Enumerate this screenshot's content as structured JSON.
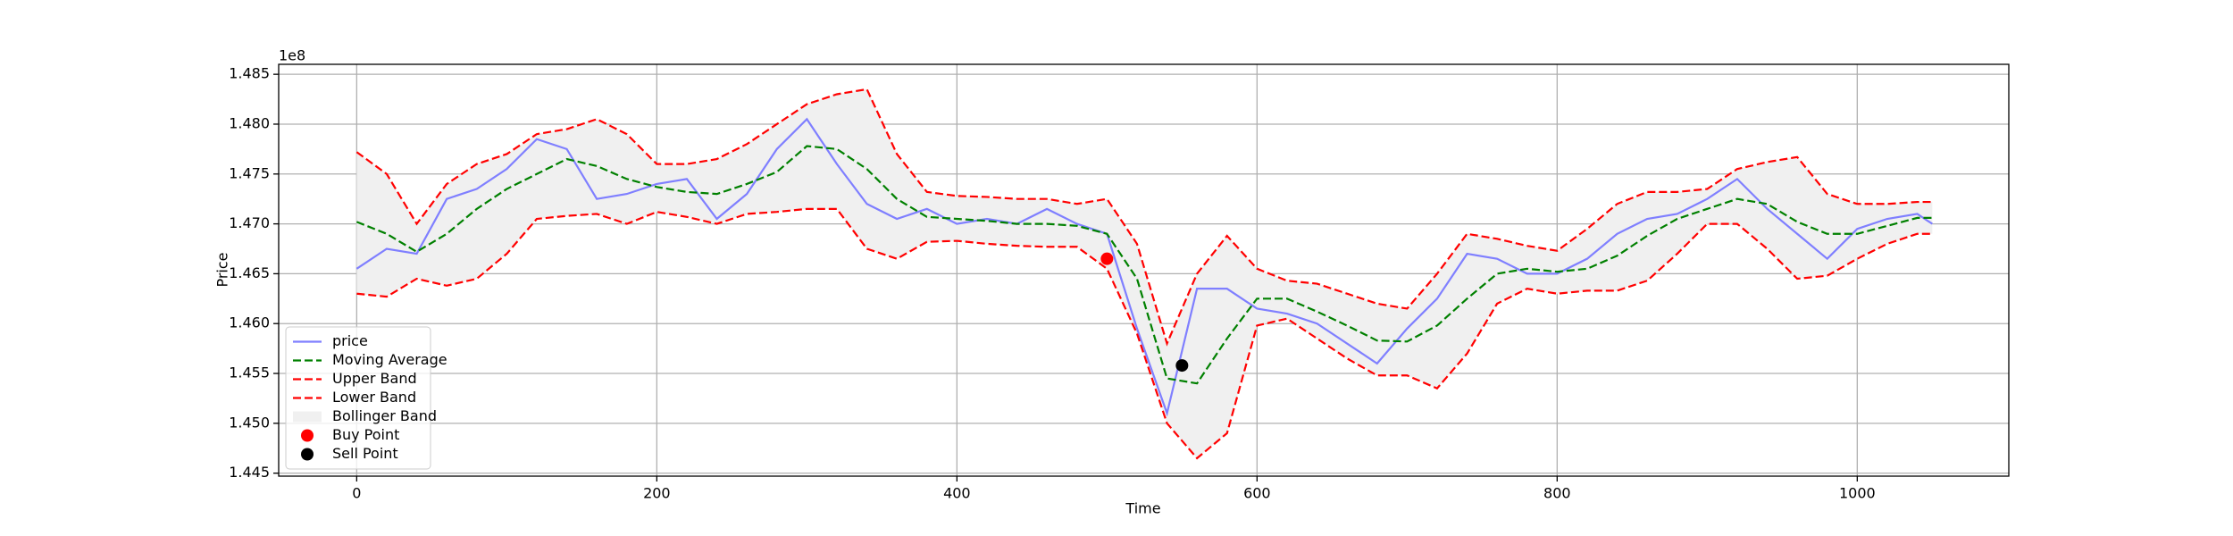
{
  "chart_data": {
    "type": "line",
    "xlabel": "Time",
    "ylabel": "Price",
    "offset_label": "1e8",
    "x": [
      0,
      20,
      40,
      60,
      80,
      100,
      120,
      140,
      160,
      180,
      200,
      220,
      240,
      260,
      280,
      300,
      320,
      340,
      360,
      380,
      400,
      420,
      440,
      460,
      480,
      500,
      520,
      540,
      560,
      580,
      600,
      620,
      640,
      660,
      680,
      700,
      720,
      740,
      760,
      780,
      800,
      820,
      840,
      860,
      880,
      900,
      920,
      940,
      960,
      980,
      1000,
      1020,
      1040,
      1050
    ],
    "series": [
      {
        "name": "price",
        "color": "#7f7fff",
        "style": "solid",
        "values": [
          1.4655,
          1.4675,
          1.467,
          1.4725,
          1.4735,
          1.4755,
          1.4785,
          1.4775,
          1.4725,
          1.473,
          1.474,
          1.4745,
          1.4705,
          1.473,
          1.4775,
          1.4805,
          1.476,
          1.472,
          1.4705,
          1.4715,
          1.47,
          1.4705,
          1.47,
          1.4715,
          1.47,
          1.469,
          1.4595,
          1.451,
          1.4635,
          1.4635,
          1.4615,
          1.461,
          1.46,
          1.458,
          1.456,
          1.4595,
          1.4625,
          1.467,
          1.4665,
          1.465,
          1.465,
          1.4665,
          1.469,
          1.4705,
          1.471,
          1.4725,
          1.4745,
          1.4715,
          1.469,
          1.4665,
          1.4695,
          1.4705,
          1.471,
          1.47
        ]
      },
      {
        "name": "Moving Average",
        "color": "#008000",
        "style": "dashed",
        "values": [
          1.4702,
          1.469,
          1.4672,
          1.469,
          1.4715,
          1.4735,
          1.475,
          1.4765,
          1.4758,
          1.4745,
          1.4737,
          1.4732,
          1.473,
          1.474,
          1.4752,
          1.4778,
          1.4775,
          1.4755,
          1.4725,
          1.4707,
          1.4705,
          1.4703,
          1.47,
          1.47,
          1.4698,
          1.469,
          1.4645,
          1.4545,
          1.454,
          1.4585,
          1.4625,
          1.4625,
          1.4612,
          1.4598,
          1.4583,
          1.4582,
          1.4598,
          1.4625,
          1.465,
          1.4655,
          1.4652,
          1.4655,
          1.4668,
          1.4688,
          1.4705,
          1.4715,
          1.4725,
          1.472,
          1.4702,
          1.469,
          1.469,
          1.4698,
          1.4706,
          1.4706
        ]
      },
      {
        "name": "Upper Band",
        "color": "#ff0000",
        "style": "dashed",
        "values": [
          1.4772,
          1.475,
          1.47,
          1.474,
          1.476,
          1.477,
          1.479,
          1.4795,
          1.4805,
          1.479,
          1.476,
          1.476,
          1.4765,
          1.478,
          1.48,
          1.482,
          1.483,
          1.4835,
          1.477,
          1.4732,
          1.4728,
          1.4727,
          1.4725,
          1.4725,
          1.472,
          1.4725,
          1.468,
          1.458,
          1.465,
          1.4688,
          1.4655,
          1.4643,
          1.464,
          1.463,
          1.462,
          1.4615,
          1.465,
          1.469,
          1.4685,
          1.4678,
          1.4673,
          1.4695,
          1.472,
          1.4732,
          1.4732,
          1.4735,
          1.4755,
          1.4762,
          1.4767,
          1.473,
          1.472,
          1.472,
          1.4722,
          1.4722
        ]
      },
      {
        "name": "Lower Band",
        "color": "#ff0000",
        "style": "dashed",
        "values": [
          1.463,
          1.4627,
          1.4645,
          1.4638,
          1.4645,
          1.467,
          1.4705,
          1.4708,
          1.471,
          1.47,
          1.4712,
          1.4707,
          1.47,
          1.471,
          1.4712,
          1.4715,
          1.4715,
          1.4675,
          1.4665,
          1.4682,
          1.4683,
          1.468,
          1.4678,
          1.4677,
          1.4677,
          1.4655,
          1.459,
          1.45,
          1.4465,
          1.449,
          1.4598,
          1.4605,
          1.4585,
          1.4565,
          1.4548,
          1.4548,
          1.4535,
          1.457,
          1.462,
          1.4635,
          1.463,
          1.4633,
          1.4633,
          1.4643,
          1.467,
          1.47,
          1.47,
          1.4675,
          1.4645,
          1.4648,
          1.4665,
          1.468,
          1.469,
          1.469
        ]
      }
    ],
    "band_fill": {
      "name": "Bollinger Band",
      "color": "#f0f0f0"
    },
    "points": [
      {
        "name": "Buy Point",
        "color": "#ff0000",
        "x": [
          500
        ],
        "values": [
          1.4665
        ]
      },
      {
        "name": "Sell Point",
        "color": "#000000",
        "x": [
          550
        ],
        "values": [
          1.4558
        ]
      }
    ],
    "xlim": [
      -52,
      1101
    ],
    "ylim": [
      1.4447,
      1.486
    ],
    "xticks": [
      0,
      200,
      400,
      600,
      800,
      1000
    ],
    "yticks": [
      1.445,
      {
        "value": 1.45,
        "label": "1.450"
      },
      1.455,
      {
        "value": 1.46,
        "label": "1.460"
      },
      1.465,
      {
        "value": 1.47,
        "label": "1.470"
      },
      1.475,
      {
        "value": 1.48,
        "label": "1.480"
      },
      1.485
    ],
    "grid": true,
    "legend": "lower left"
  }
}
